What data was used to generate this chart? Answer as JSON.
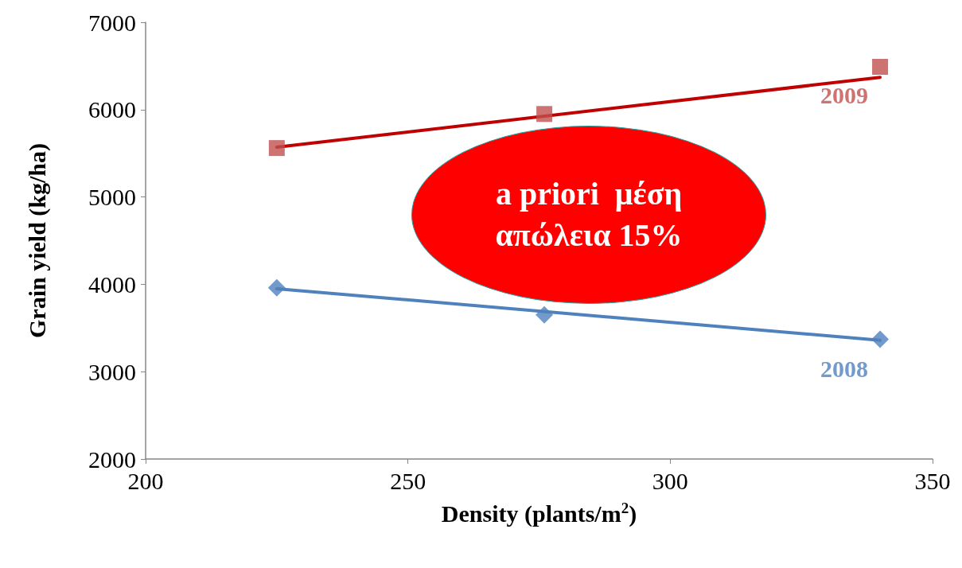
{
  "chart_data": {
    "type": "scatter",
    "xlabel": "Density (plants/m$^{2}$)",
    "ylabel": "Grain yield (kg/ha)",
    "xlim": [
      200,
      350
    ],
    "xticks": [
      200,
      250,
      300,
      350
    ],
    "ylim": [
      2000,
      7000
    ],
    "yticks": [
      2000,
      3000,
      4000,
      5000,
      6000,
      7000
    ],
    "grid": false,
    "legend": false,
    "annotations": [
      "a priori  μέση απώλεια 15%"
    ],
    "series": [
      {
        "name": "2009",
        "marker": "square",
        "color": "#c0504d",
        "x": [
          225,
          276,
          340
        ],
        "values": [
          5560,
          5950,
          6490
        ]
      },
      {
        "type": "line",
        "color": "#c00000",
        "marker": "none",
        "x": [
          225,
          340
        ],
        "values": [
          5570,
          6370
        ]
      },
      {
        "name": "2008",
        "marker": "diamond",
        "color": "#4f81bd",
        "x": [
          225,
          276,
          340
        ],
        "values": [
          3960,
          3650,
          3370
        ]
      },
      {
        "type": "line",
        "color": "#4f81bd",
        "marker": "none",
        "x": [
          225,
          340
        ],
        "values": [
          3950,
          3360
        ]
      }
    ]
  }
}
